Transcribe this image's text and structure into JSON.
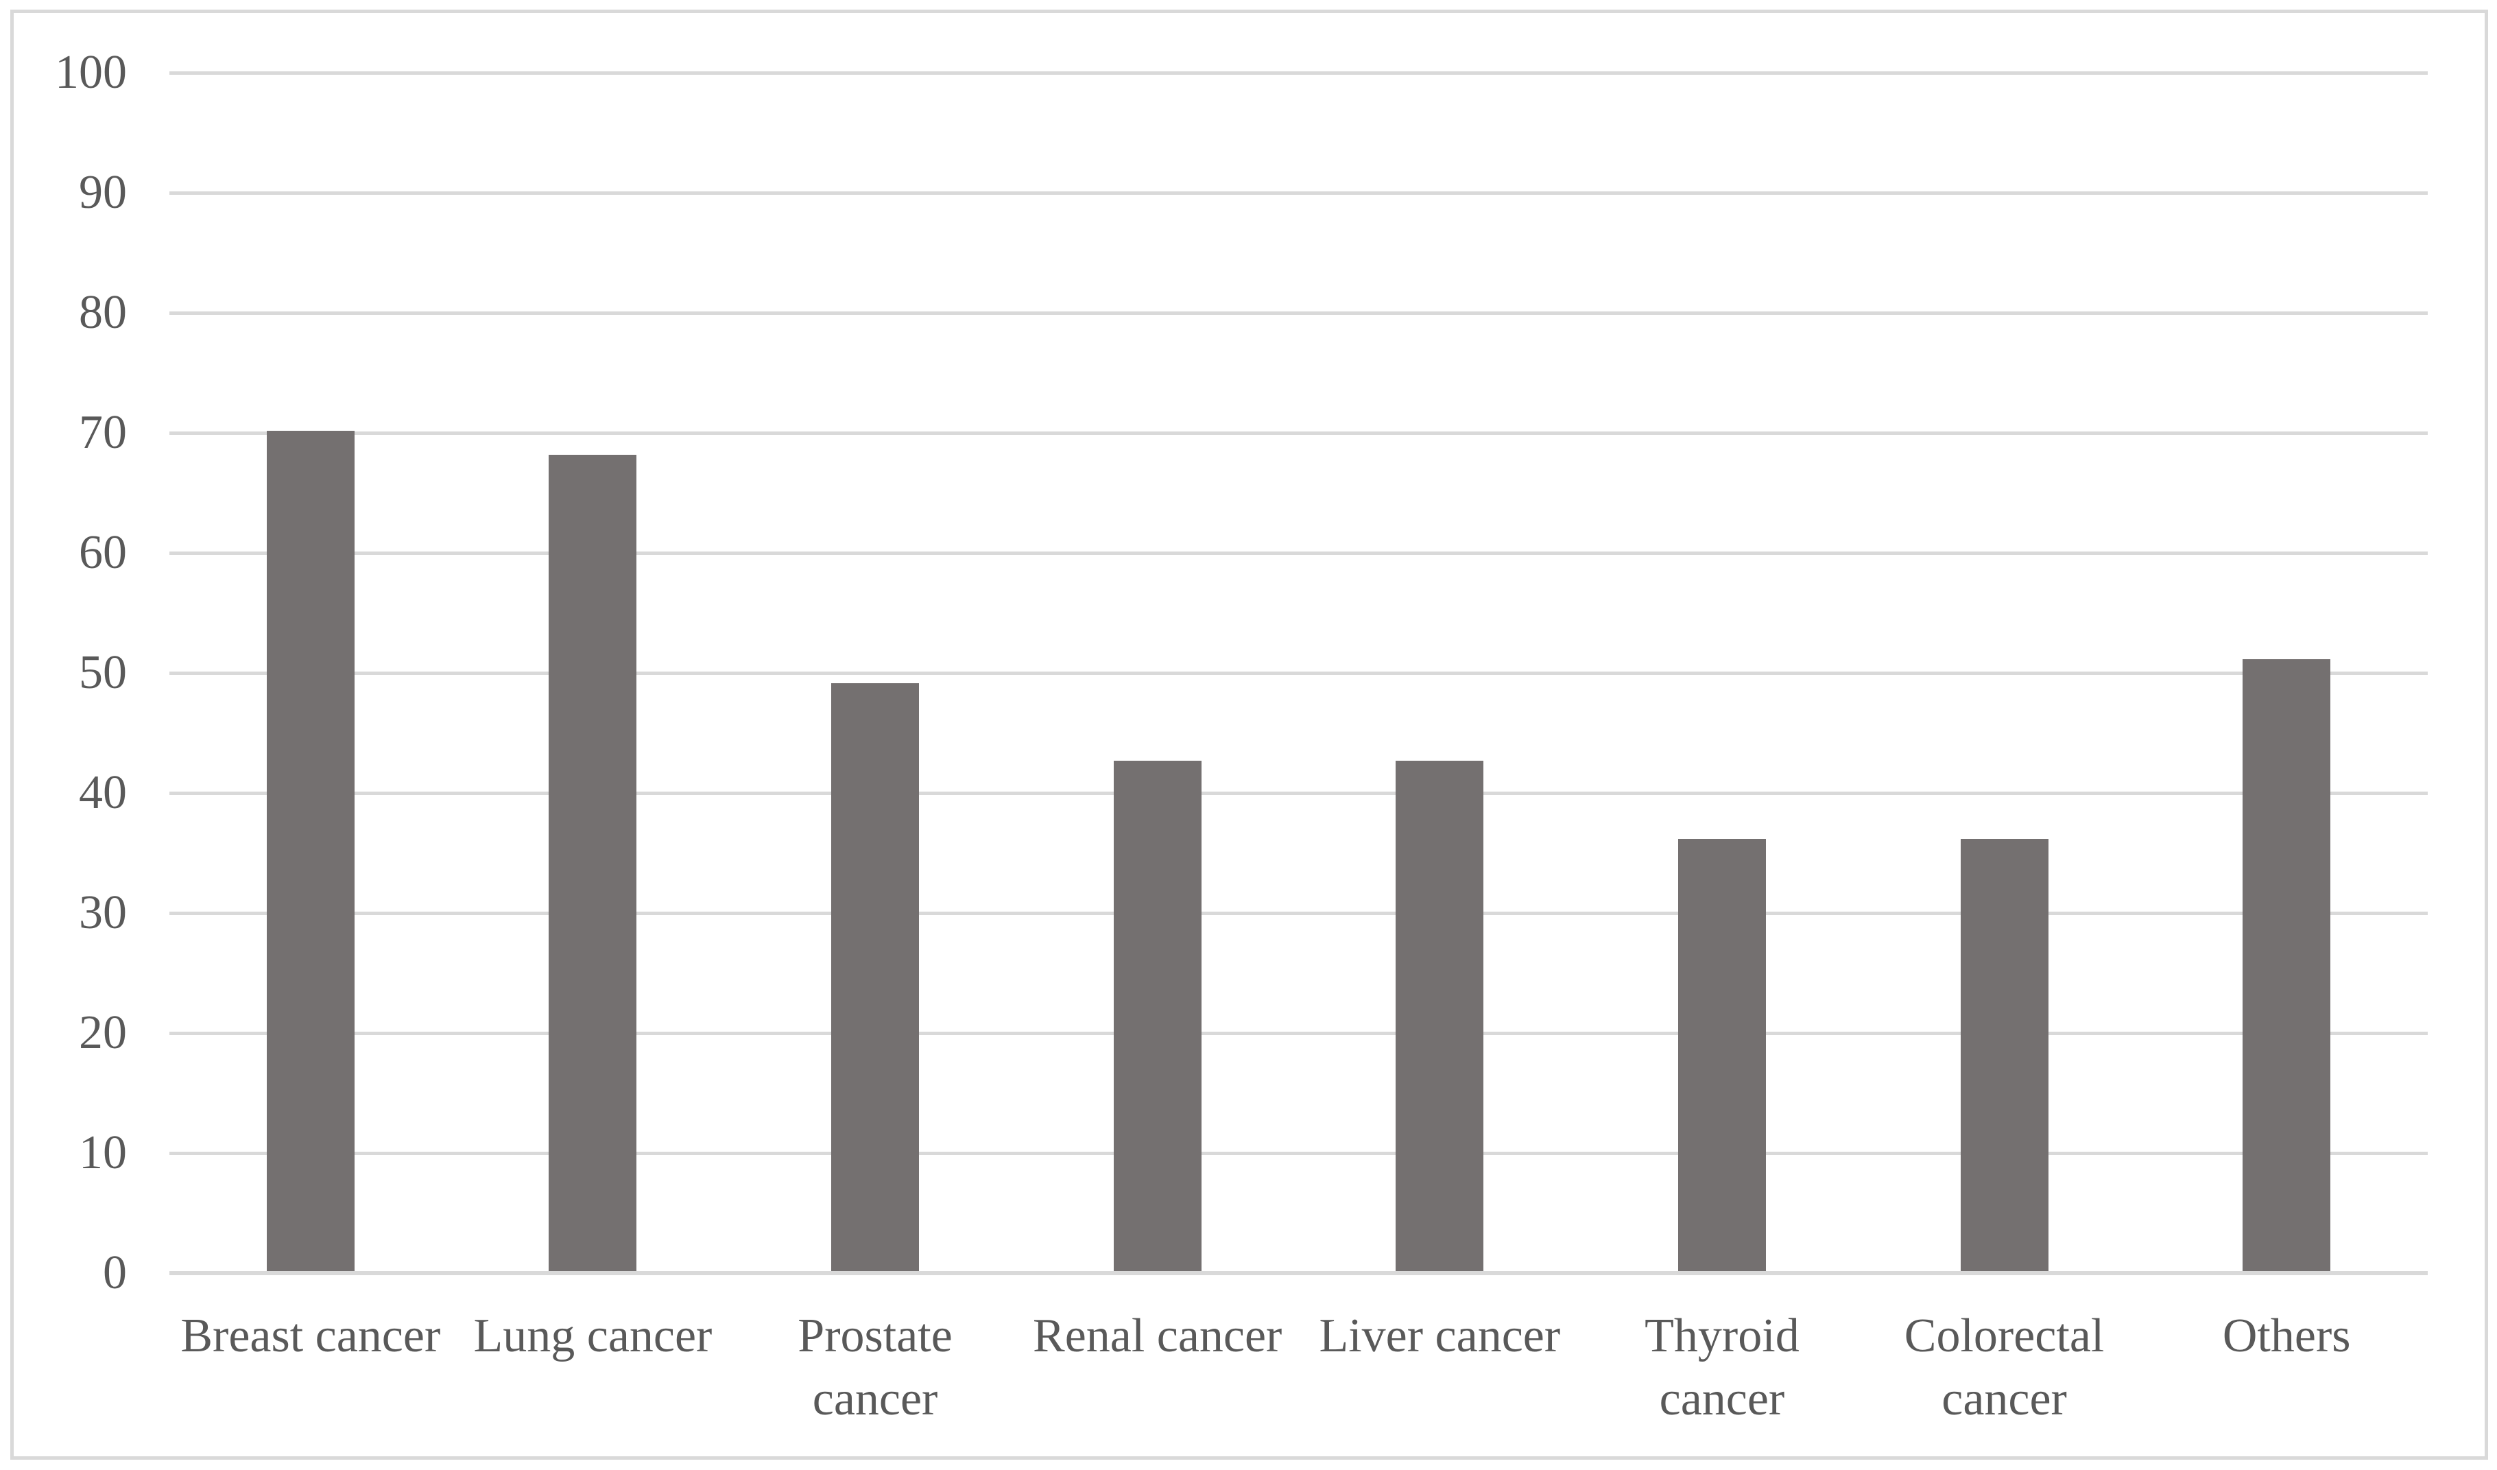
{
  "chart_data": {
    "type": "bar",
    "title": "",
    "xlabel": "",
    "ylabel": "",
    "categories": [
      "Breast cancer",
      "Lung cancer",
      "Prostate cancer",
      "Renal cancer",
      "Liver cancer",
      "Thyroid cancer",
      "Colorectal cancer",
      "Others"
    ],
    "display_labels": [
      "Breast cancer",
      "Lung cancer",
      "Prostate\ncancer",
      "Renal cancer",
      "Liver cancer",
      "Thyroid\ncancer",
      "Colorectal\ncancer",
      "Others"
    ],
    "values": [
      70,
      68,
      49,
      42.5,
      42.5,
      36,
      36,
      51
    ],
    "yticks": [
      0,
      10,
      20,
      30,
      40,
      50,
      60,
      70,
      80,
      90,
      100
    ],
    "ylim": [
      0,
      100
    ],
    "grid": "horizontal",
    "legend": "none",
    "colors": {
      "bar_fill": "#747070",
      "gridline": "#d9d9d9",
      "axis_line": "#d9d9d9",
      "tick_text": "#595959",
      "frame_border": "#d9d9d9",
      "background": "#ffffff"
    }
  }
}
